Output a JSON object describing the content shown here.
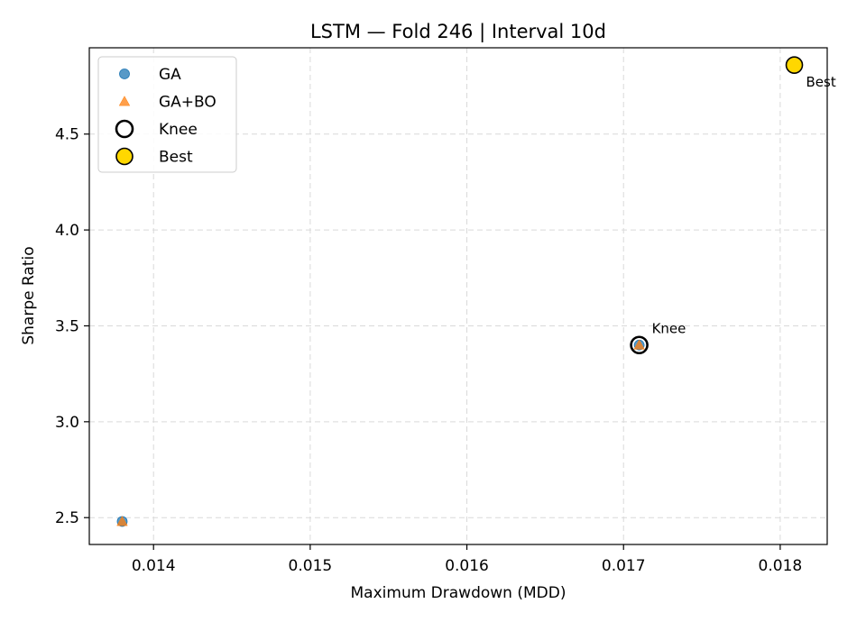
{
  "chart_data": {
    "type": "scatter",
    "title": "LSTM — Fold 246 | Interval 10d",
    "xlabel": "Maximum Drawdown (MDD)",
    "ylabel": "Sharpe Ratio",
    "xlim": [
      0.01359,
      0.0183
    ],
    "ylim": [
      2.36,
      4.95
    ],
    "xticks": [
      0.014,
      0.015,
      0.016,
      0.017,
      0.018
    ],
    "xtick_labels": [
      "0.014",
      "0.015",
      "0.016",
      "0.017",
      "0.018"
    ],
    "yticks": [
      2.5,
      3.0,
      3.5,
      4.0,
      4.5
    ],
    "ytick_labels": [
      "2.5",
      "3.0",
      "3.5",
      "4.0",
      "4.5"
    ],
    "grid": true,
    "legend_position": "top-left",
    "series": [
      {
        "name": "GA",
        "marker": "circle",
        "color": "#1f77b4",
        "points": [
          {
            "x": 0.0138,
            "y": 2.48
          },
          {
            "x": 0.0171,
            "y": 3.4
          }
        ]
      },
      {
        "name": "GA+BO",
        "marker": "triangle",
        "color": "#ff7f0e",
        "points": [
          {
            "x": 0.0138,
            "y": 2.48
          },
          {
            "x": 0.0171,
            "y": 3.4
          }
        ]
      },
      {
        "name": "Knee",
        "marker": "ring",
        "color": "#000000",
        "points": [
          {
            "x": 0.0171,
            "y": 3.4
          }
        ]
      },
      {
        "name": "Best",
        "marker": "circle-outlined",
        "color": "#ffd700",
        "points": [
          {
            "x": 0.01809,
            "y": 4.86
          }
        ]
      }
    ],
    "annotations": [
      {
        "text": "Knee",
        "x": 0.0171,
        "y": 3.4
      },
      {
        "text": "Best",
        "x": 0.01809,
        "y": 4.86
      }
    ]
  }
}
